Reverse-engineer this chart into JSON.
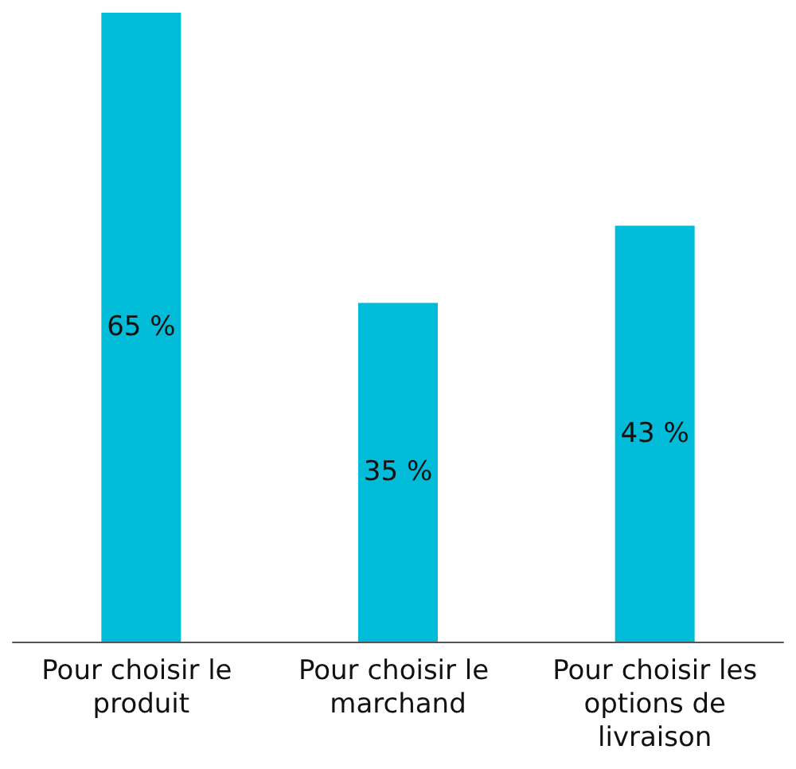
{
  "chart_data": {
    "type": "bar",
    "categories": [
      "Pour choisir le produit",
      "Pour choisir le marchand",
      "Pour choisir les options de livraison"
    ],
    "values": [
      65,
      35,
      43
    ],
    "color": "#00bcd9",
    "value_labels": [
      "65 %",
      "35 %",
      "43 %"
    ]
  }
}
